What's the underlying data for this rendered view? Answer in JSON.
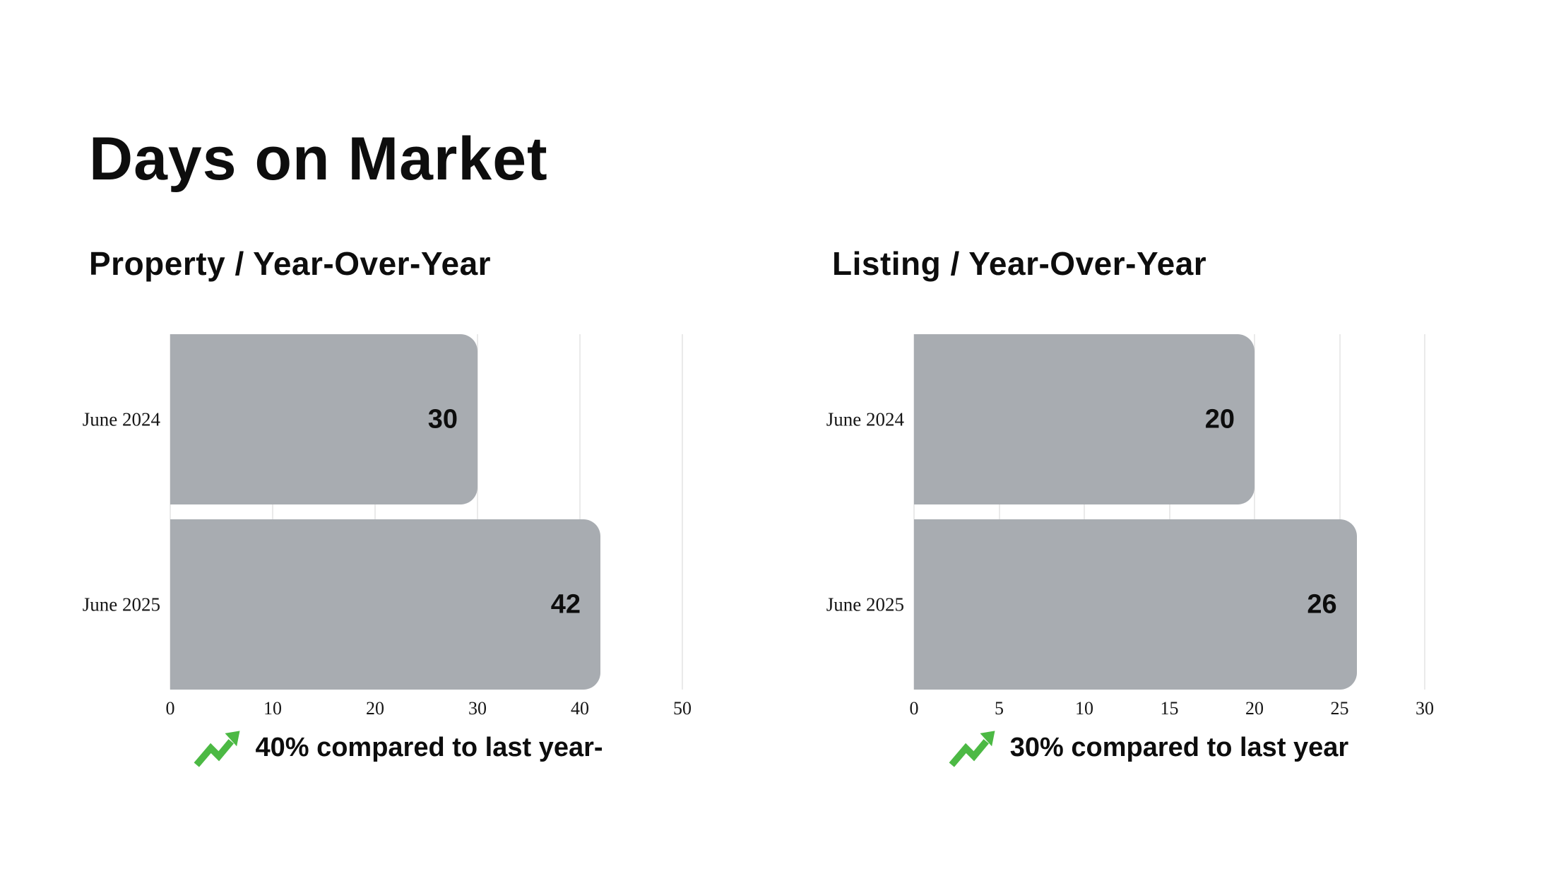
{
  "page": {
    "title": "Days on Market",
    "background": "#ffffff"
  },
  "colors": {
    "bar": "#a8acb1",
    "gridline": "#eaeaea",
    "text": "#0d0d0d",
    "accent_green": "#4cb944"
  },
  "chart_data": [
    {
      "type": "bar",
      "orientation": "horizontal",
      "title": "Property / Year-Over-Year",
      "categories": [
        "June 2024",
        "June 2025"
      ],
      "values": [
        30,
        42
      ],
      "xlim": [
        0,
        50
      ],
      "xticks": [
        0,
        10,
        20,
        30,
        40,
        50
      ],
      "grid": "vertical-ticks",
      "value_labels": "inside-end",
      "annotation": "40% compared to last year-",
      "annotation_icon": "trend-up-arrow"
    },
    {
      "type": "bar",
      "orientation": "horizontal",
      "title": "Listing / Year-Over-Year",
      "categories": [
        "June 2024",
        "June 2025"
      ],
      "values": [
        20,
        26
      ],
      "xlim": [
        0,
        30
      ],
      "xticks": [
        0,
        5,
        10,
        15,
        20,
        25,
        30
      ],
      "grid": "vertical-ticks",
      "value_labels": "inside-end",
      "annotation": "30% compared to last year",
      "annotation_icon": "trend-up-arrow"
    }
  ]
}
